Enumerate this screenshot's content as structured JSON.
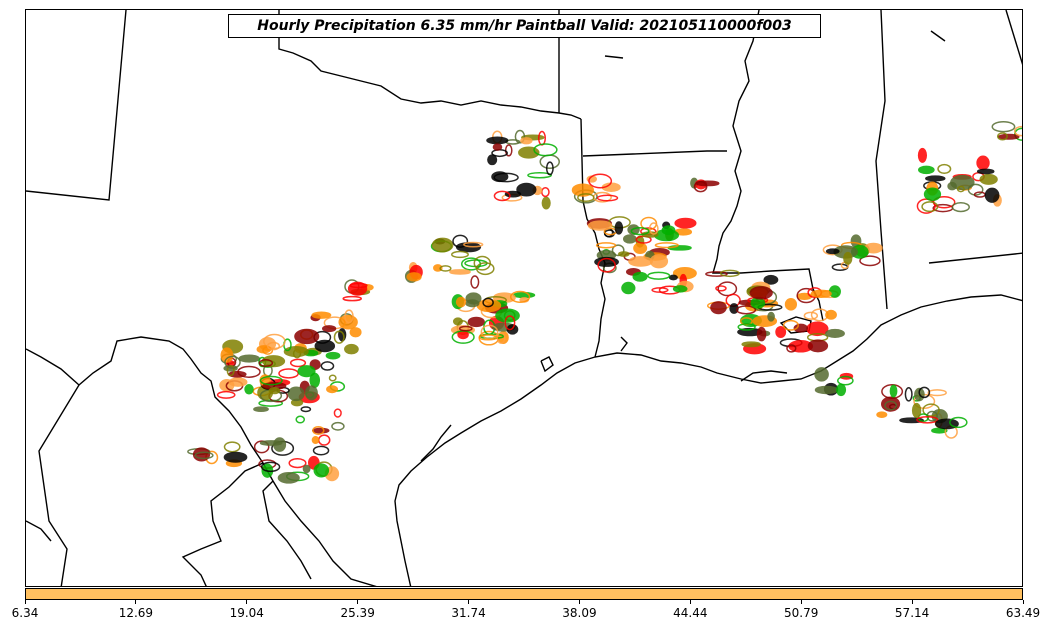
{
  "title": "Hourly Precipitation 6.35 mm/hr Paintball Valid: 202105110000f003",
  "colorbar": {
    "color": "#ffc060",
    "ticks": [
      "6.34",
      "12.69",
      "19.04",
      "25.39",
      "31.74",
      "38.09",
      "44.44",
      "50.79",
      "57.14",
      "63.49"
    ]
  },
  "map": {
    "region": "Texas / Louisiana Gulf Coast",
    "paintball_colors": [
      "#ff8c00",
      "#ff0000",
      "#8b0000",
      "#00b000",
      "#556b2f",
      "#808000",
      "#ffa040",
      "#000000"
    ]
  }
}
